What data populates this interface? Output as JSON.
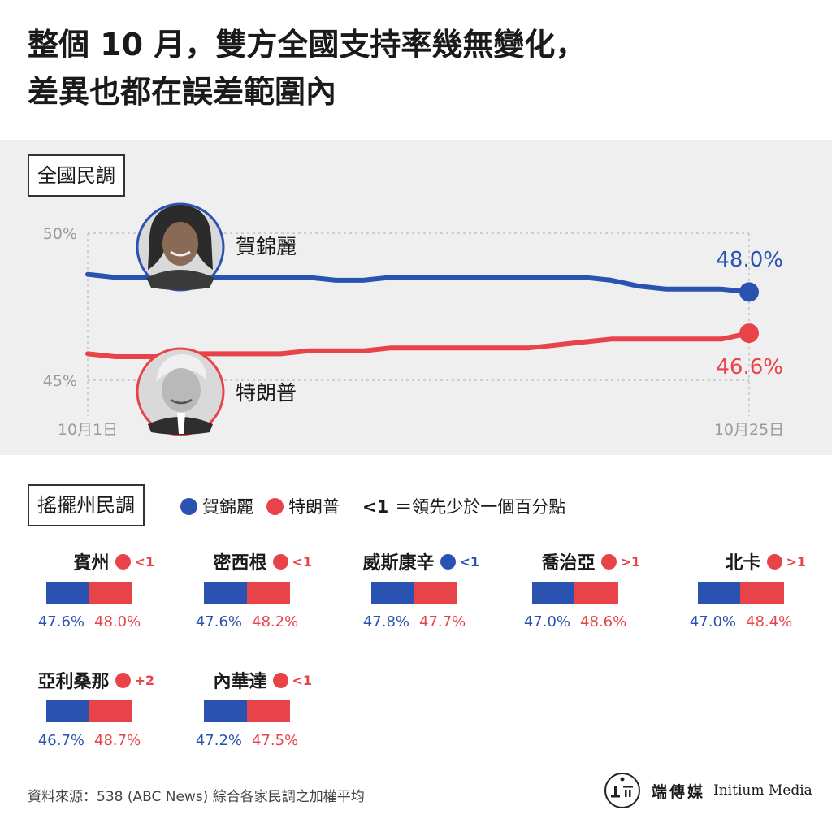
{
  "headline": {
    "line1": "整個 10 月，雙方全國支持率幾無變化，",
    "line2": "差異也都在誤差範圍內"
  },
  "colors": {
    "harris": "#2a52b0",
    "trump": "#e9434a",
    "axis": "#c9c9c9",
    "panel": "#efefef"
  },
  "national": {
    "tag": "全國民調",
    "harris_label": "賀錦麗",
    "trump_label": "特朗普",
    "harris_end_label": "48.0%",
    "trump_end_label": "46.6%"
  },
  "chart_data": {
    "type": "line",
    "x": [
      "10月1日",
      "10月2日",
      "10月3日",
      "10月4日",
      "10月5日",
      "10月6日",
      "10月7日",
      "10月8日",
      "10月9日",
      "10月10日",
      "10月11日",
      "10月12日",
      "10月13日",
      "10月14日",
      "10月15日",
      "10月16日",
      "10月17日",
      "10月18日",
      "10月19日",
      "10月20日",
      "10月21日",
      "10月22日",
      "10月23日",
      "10月24日",
      "10月25日"
    ],
    "series": [
      {
        "name": "賀錦麗",
        "color": "#2a52b0",
        "values": [
          48.6,
          48.5,
          48.5,
          48.5,
          48.5,
          48.5,
          48.5,
          48.5,
          48.5,
          48.4,
          48.4,
          48.5,
          48.5,
          48.5,
          48.5,
          48.5,
          48.5,
          48.5,
          48.5,
          48.4,
          48.2,
          48.1,
          48.1,
          48.1,
          48.0
        ]
      },
      {
        "name": "特朗普",
        "color": "#e9434a",
        "values": [
          45.9,
          45.8,
          45.8,
          45.8,
          45.9,
          45.9,
          45.9,
          45.9,
          46.0,
          46.0,
          46.0,
          46.1,
          46.1,
          46.1,
          46.1,
          46.1,
          46.1,
          46.2,
          46.3,
          46.4,
          46.4,
          46.4,
          46.4,
          46.4,
          46.6
        ]
      }
    ],
    "ylim": [
      45,
      50
    ],
    "ytick_labels": [
      "50%",
      "45%"
    ],
    "xtick_labels": [
      "10月1日",
      "10月25日"
    ],
    "grid": true
  },
  "swing": {
    "tag": "搖擺州民調",
    "legend_harris": "賀錦麗",
    "legend_trump": "特朗普",
    "lead_symbol": "<1",
    "lead_text": "＝領先少於一個百分點",
    "states": [
      {
        "name": "賓州",
        "lead": "<1",
        "leader": "trump",
        "harris": "47.6%",
        "trump": "48.0%",
        "harris_value": 47.6,
        "trump_value": 48.0
      },
      {
        "name": "密西根",
        "lead": "<1",
        "leader": "trump",
        "harris": "47.6%",
        "trump": "48.2%",
        "harris_value": 47.6,
        "trump_value": 48.2
      },
      {
        "name": "威斯康辛",
        "lead": "<1",
        "leader": "harris",
        "harris": "47.8%",
        "trump": "47.7%",
        "harris_value": 47.8,
        "trump_value": 47.7
      },
      {
        "name": "喬治亞",
        "lead": ">1",
        "leader": "trump",
        "harris": "47.0%",
        "trump": "48.6%",
        "harris_value": 47.0,
        "trump_value": 48.6
      },
      {
        "name": "北卡",
        "lead": ">1",
        "leader": "trump",
        "harris": "47.0%",
        "trump": "48.4%",
        "harris_value": 47.0,
        "trump_value": 48.4
      },
      {
        "name": "亞利桑那",
        "lead": "+2",
        "leader": "trump",
        "harris": "46.7%",
        "trump": "48.7%",
        "harris_value": 46.7,
        "trump_value": 48.7
      },
      {
        "name": "內華達",
        "lead": "<1",
        "leader": "trump",
        "harris": "47.2%",
        "trump": "47.5%",
        "harris_value": 47.2,
        "trump_value": 47.5
      }
    ]
  },
  "footer": {
    "source": "資料來源：538 (ABC News) 綜合各家民調之加權平均",
    "logo_cn": "端傳媒",
    "logo_en": "Initium Media"
  }
}
